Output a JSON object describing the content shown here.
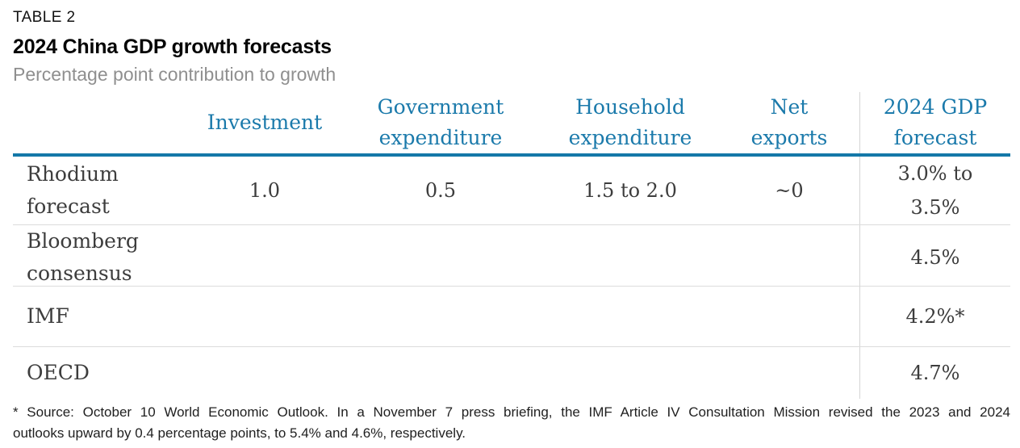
{
  "header": {
    "eyebrow": "TABLE 2",
    "title": "2024 China GDP growth forecasts",
    "subtitle": "Percentage point contribution to growth"
  },
  "table": {
    "columns": [
      "Investment",
      "Government\nexpenditure",
      "Household\nexpenditure",
      "Net\nexports",
      "2024 GDP\nforecast"
    ],
    "rows": [
      {
        "label": "Rhodium\nforecast",
        "cells": [
          "1.0",
          "0.5",
          "1.5 to 2.0",
          "~0",
          "3.0% to\n3.5%"
        ]
      },
      {
        "label": "Bloomberg\nconsensus",
        "cells": [
          "",
          "",
          "",
          "",
          "4.5%"
        ]
      },
      {
        "label": "IMF",
        "cells": [
          "",
          "",
          "",
          "",
          "4.2%*"
        ]
      },
      {
        "label": "OECD",
        "cells": [
          "",
          "",
          "",
          "",
          "4.7%"
        ]
      }
    ]
  },
  "footnote": {
    "line1": "* Source: October 10 World Economic Outlook. In a November 7 press briefing, the IMF Article IV Consultation Mission revised the 2023 and 2024",
    "line2": "outlooks upward by 0.4 percentage points, to 5.4% and 4.6%, respectively."
  },
  "colors": {
    "accent_blue_rule": "#1478a8",
    "header_text_blue": "#1b7aab",
    "body_text": "#3d3d3d",
    "subtitle_gray": "#8f8f8f",
    "hairline_gray": "#dcdcdc"
  }
}
